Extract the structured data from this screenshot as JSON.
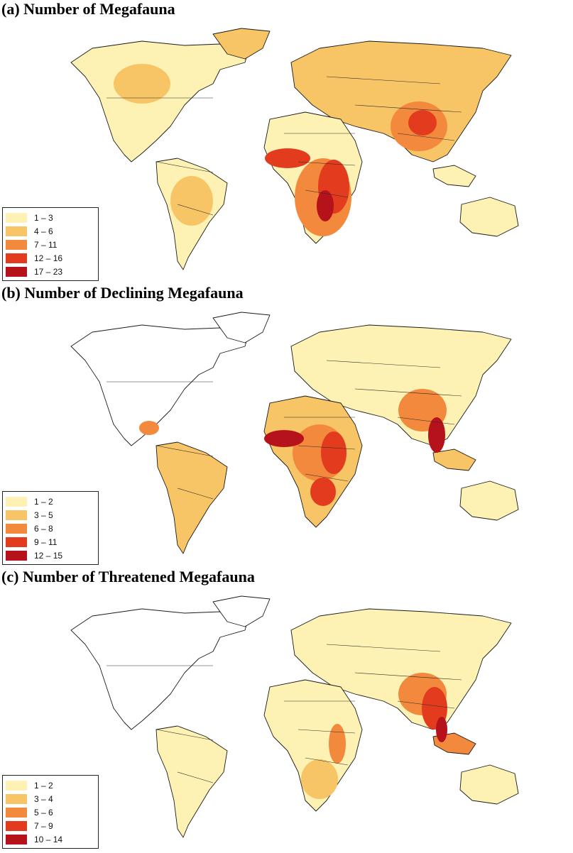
{
  "panels": [
    {
      "title": "(a) Number of Megafauna",
      "legend": [
        {
          "label": "1 – 3",
          "color": "#fdf2b4"
        },
        {
          "label": "4 – 6",
          "color": "#f8c566"
        },
        {
          "label": "7 – 11",
          "color": "#f3893c"
        },
        {
          "label": "12 – 16",
          "color": "#e33b1e"
        },
        {
          "label": "17 – 23",
          "color": "#b5121b"
        }
      ]
    },
    {
      "title": "(b) Number of Declining Megafauna",
      "legend": [
        {
          "label": "1 – 2",
          "color": "#fdf2b4"
        },
        {
          "label": "3 – 5",
          "color": "#f8c566"
        },
        {
          "label": "6 – 8",
          "color": "#f3893c"
        },
        {
          "label": "9 – 11",
          "color": "#e33b1e"
        },
        {
          "label": "12 – 15",
          "color": "#b5121b"
        }
      ]
    },
    {
      "title": "(c) Number of Threatened Megafauna",
      "legend": [
        {
          "label": "1 – 2",
          "color": "#fdf2b4"
        },
        {
          "label": "3 – 4",
          "color": "#f8c566"
        },
        {
          "label": "5 – 6",
          "color": "#f3893c"
        },
        {
          "label": "7 – 9",
          "color": "#e33b1e"
        },
        {
          "label": "10 – 14",
          "color": "#b5121b"
        }
      ]
    }
  ]
}
